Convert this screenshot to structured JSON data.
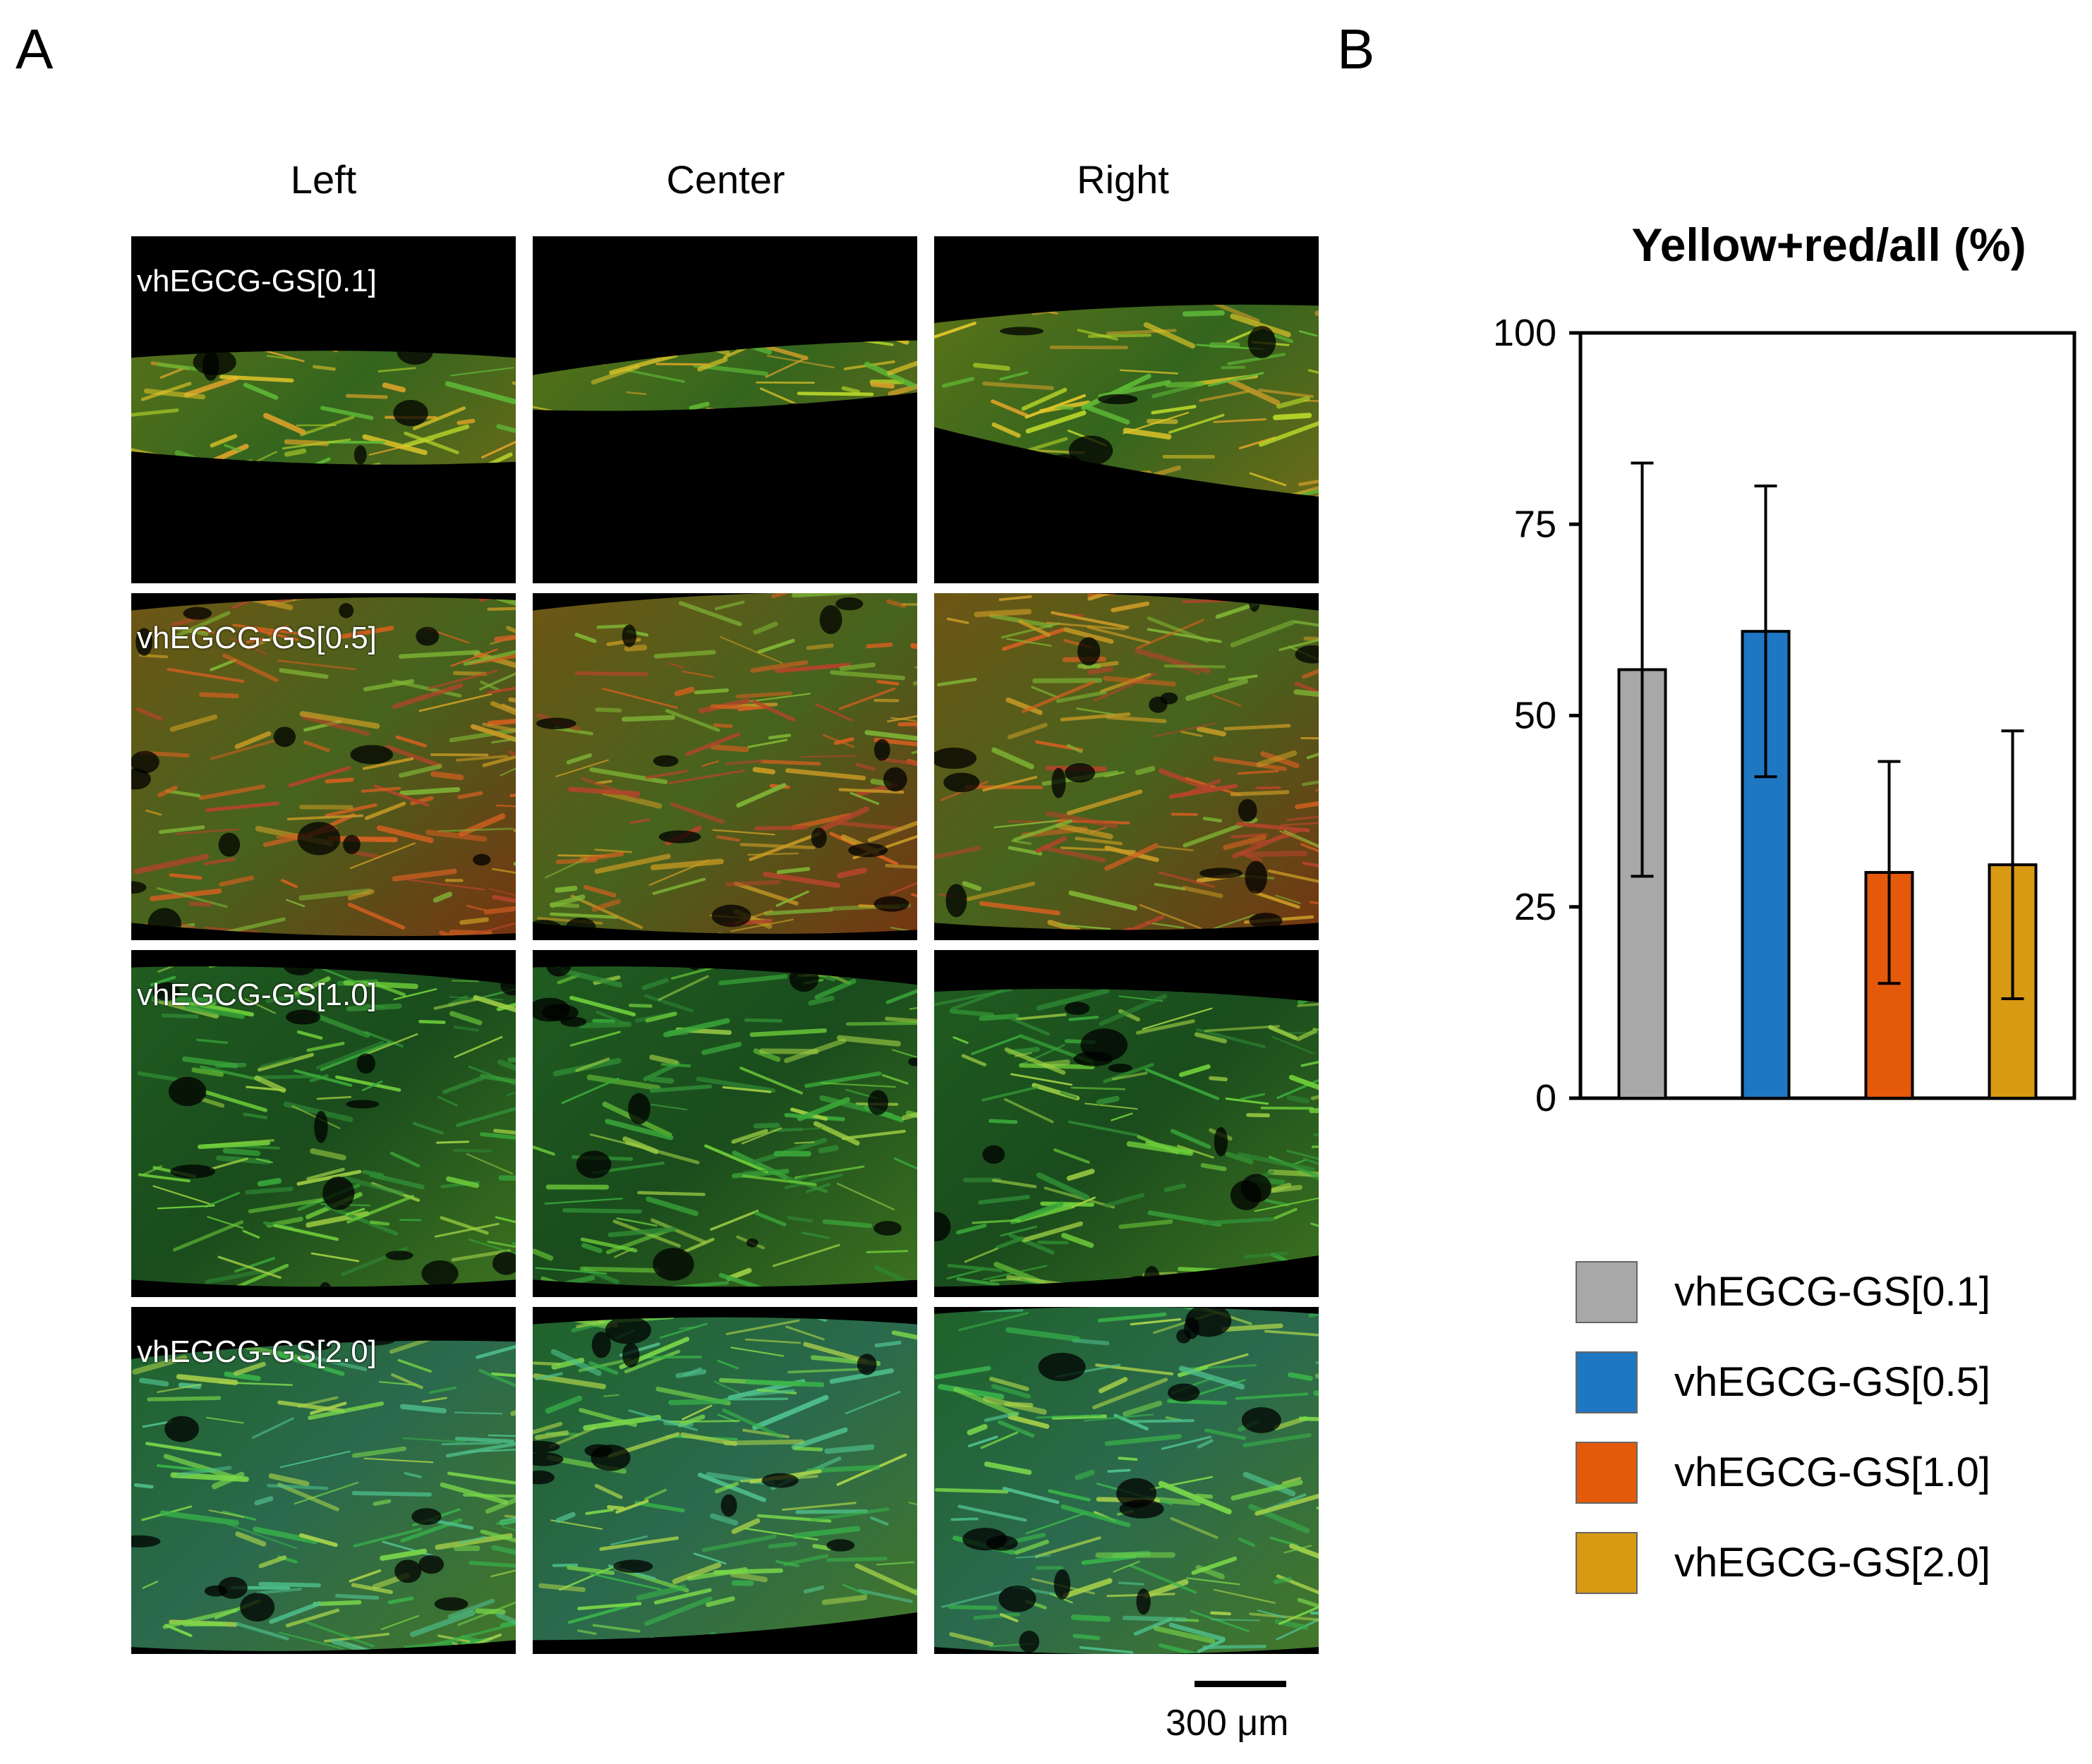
{
  "panels": {
    "a": {
      "letter": "A",
      "column_headers": [
        "Left",
        "Center",
        "Right"
      ],
      "row_labels": [
        "vhEGCG-GS[0.1]",
        "vhEGCG-GS[0.5]",
        "vhEGCG-GS[1.0]",
        "vhEGCG-GS[2.0]"
      ],
      "scale_bar": {
        "label": "300 μm"
      }
    },
    "b": {
      "letter": "B"
    }
  },
  "chart_data": {
    "type": "bar",
    "title": "Yellow+red/all (%)",
    "xlabel": "",
    "ylabel": "",
    "ylim": [
      0,
      100
    ],
    "yticks": [
      0,
      25,
      50,
      75,
      100
    ],
    "categories": [
      "vhEGCG-GS[0.1]",
      "vhEGCG-GS[0.5]",
      "vhEGCG-GS[1.0]",
      "vhEGCG-GS[2.0]"
    ],
    "values": [
      56,
      61,
      29.5,
      30.5
    ],
    "error": [
      27,
      19,
      14.5,
      17.5
    ],
    "colors": [
      "#a8a8a8",
      "#1f77c4",
      "#e55a0a",
      "#d89a12"
    ],
    "grid": false,
    "legend": {
      "placement": "below",
      "entries": [
        "vhEGCG-GS[0.1]",
        "vhEGCG-GS[0.5]",
        "vhEGCG-GS[1.0]",
        "vhEGCG-GS[2.0]"
      ]
    }
  }
}
